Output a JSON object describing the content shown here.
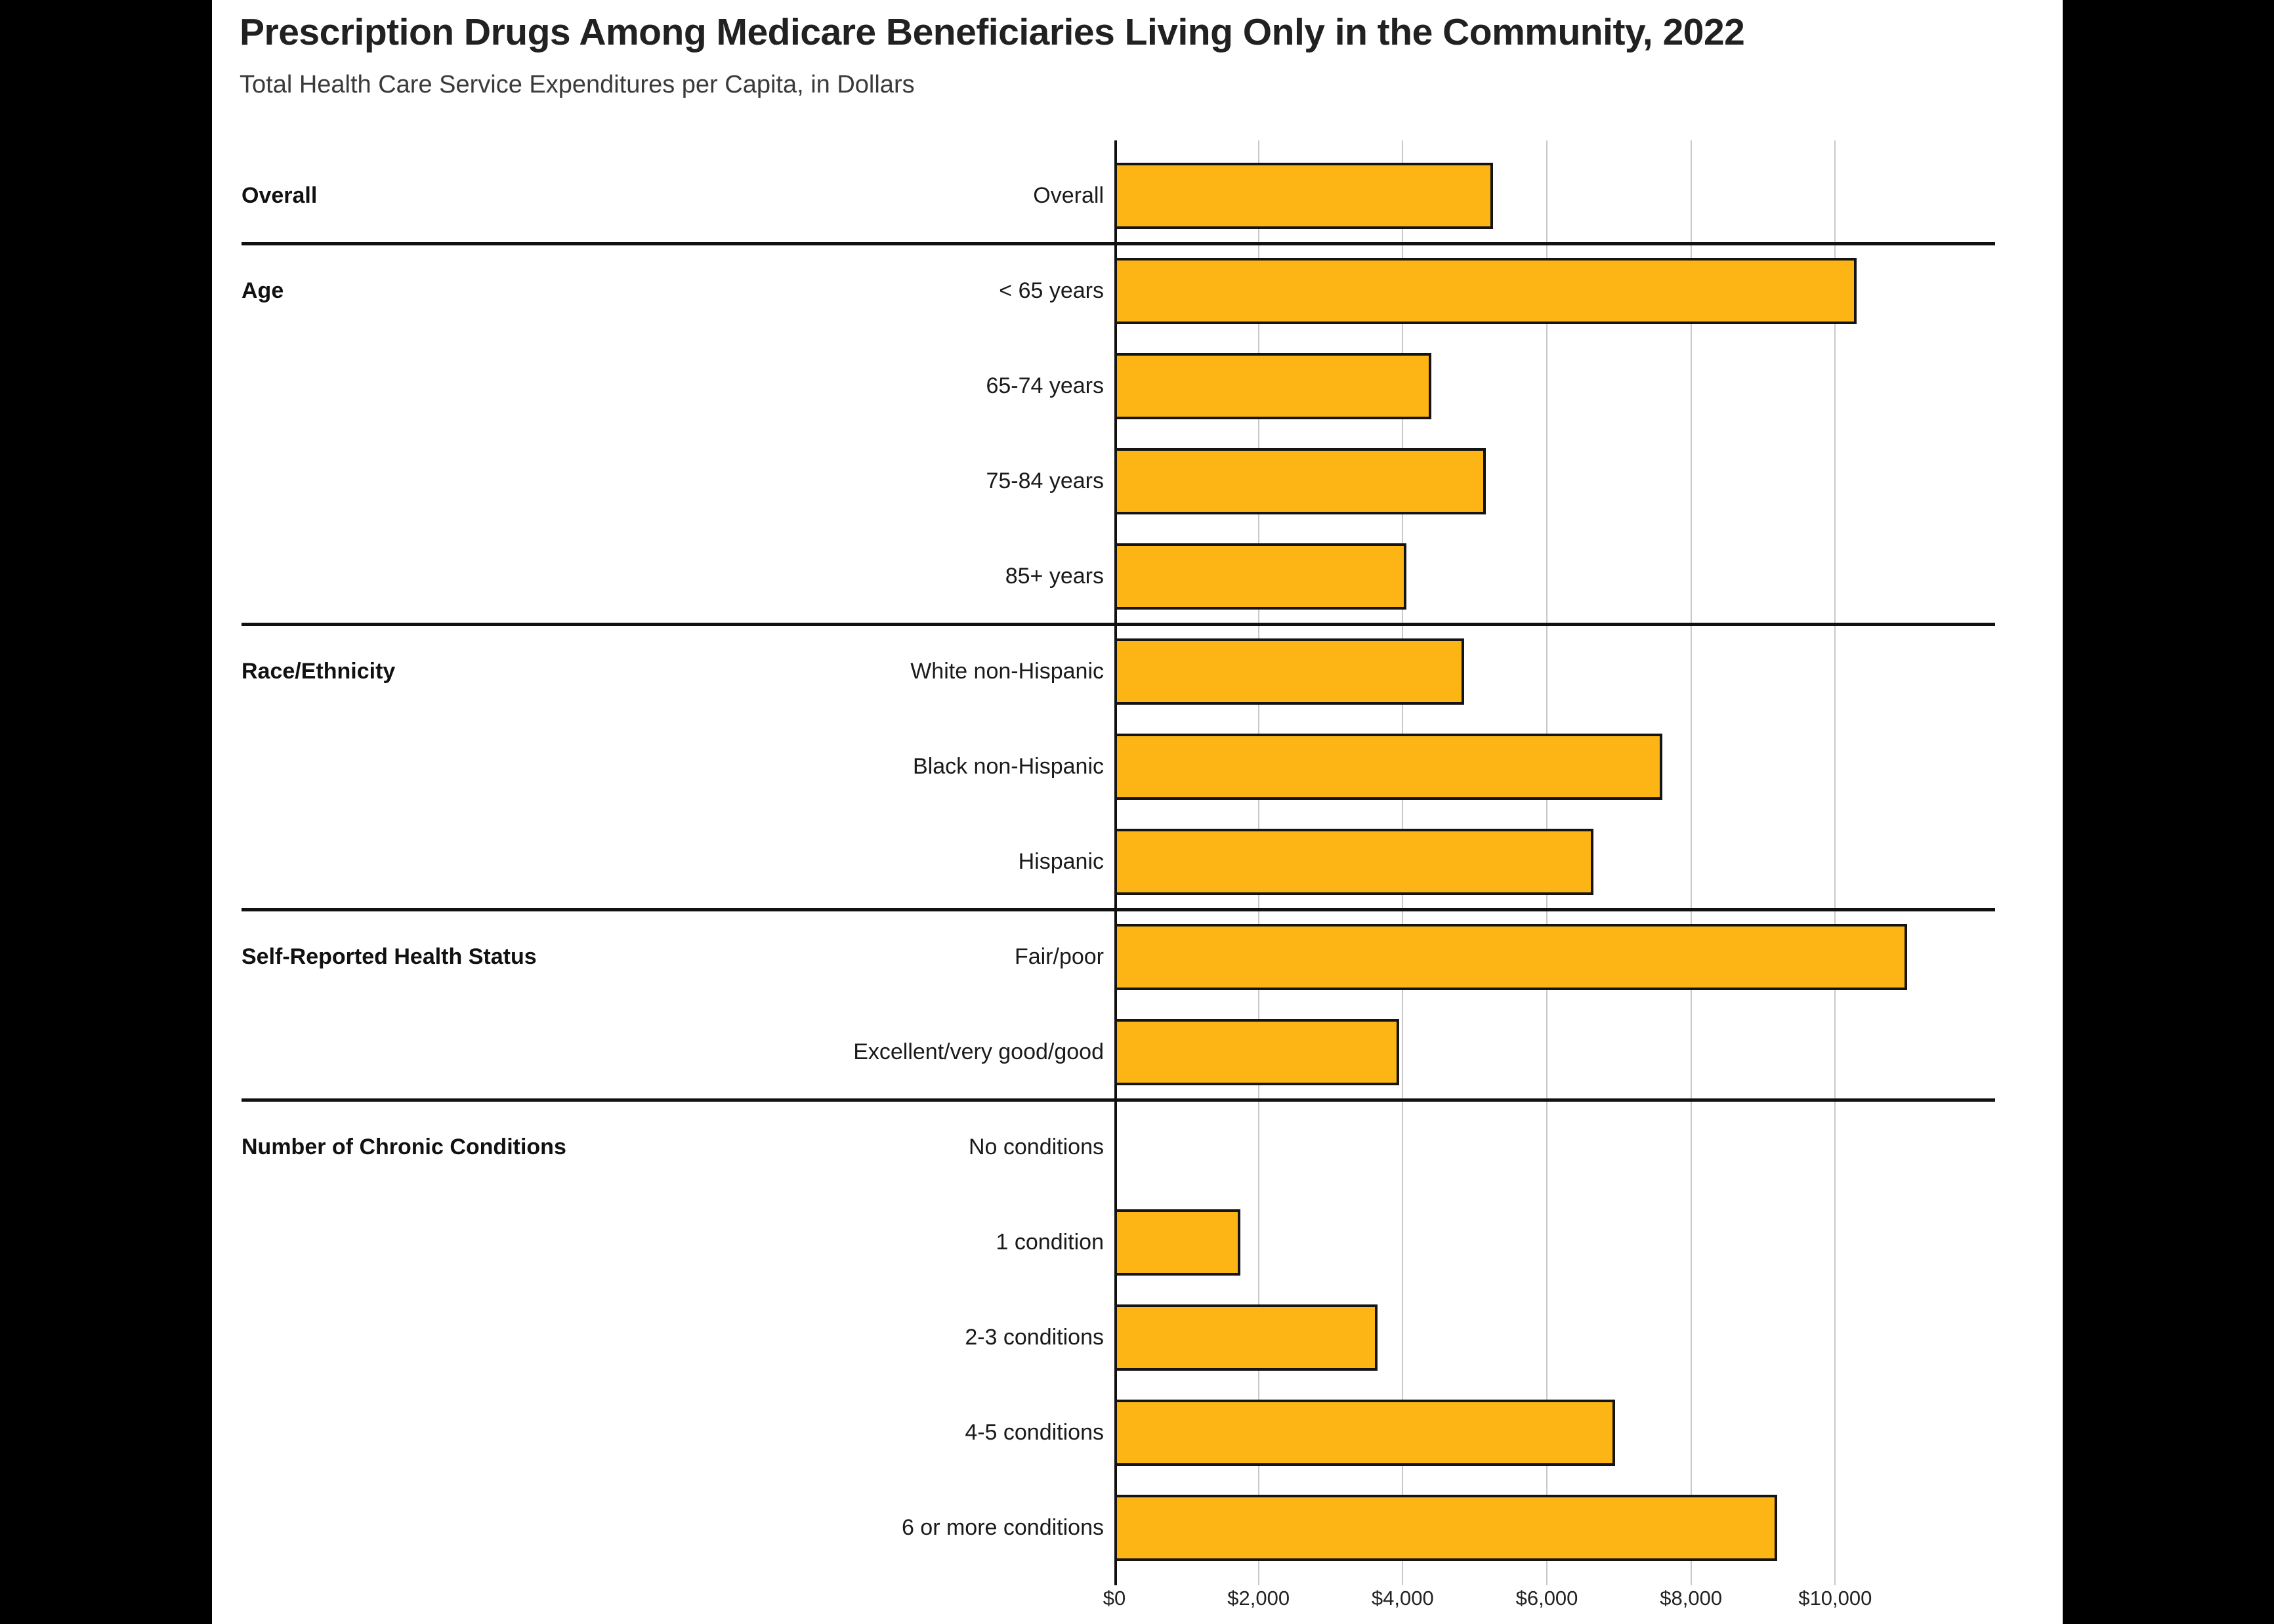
{
  "title": "Prescription Drugs Among Medicare Beneficiaries Living Only in the Community, 2022",
  "subtitle": "Total Health Care Service Expenditures per Capita, in Dollars",
  "colors": {
    "bar_fill": "#FCB514",
    "bar_border": "#141414",
    "gridline": "#C9C9C9",
    "axis": "#111111",
    "divider": "#111111",
    "background": "#FFFFFF",
    "frame": "#000000"
  },
  "chart_data": {
    "type": "bar",
    "orientation": "horizontal",
    "title": "Prescription Drugs Among Medicare Beneficiaries Living Only in the Community, 2022",
    "subtitle": "Total Health Care Service Expenditures per Capita, in Dollars",
    "xlabel": "",
    "ylabel": "",
    "unit": "dollars",
    "xlim": [
      0,
      12200
    ],
    "grid": "vertical gridlines every $2,000",
    "legend": "none",
    "x_tick_values": [
      0,
      2000,
      4000,
      6000,
      8000,
      10000
    ],
    "x_ticks": [
      "$0",
      "$2,000",
      "$4,000",
      "$6,000",
      "$8,000",
      "$10,000"
    ],
    "sections": [
      {
        "label": "Overall",
        "rows": [
          {
            "label": "Overall",
            "value": 5250
          }
        ]
      },
      {
        "label": "Age",
        "rows": [
          {
            "label": "< 65 years",
            "value": 10300
          },
          {
            "label": "65-74 years",
            "value": 4400
          },
          {
            "label": "75-84 years",
            "value": 5150
          },
          {
            "label": "85+ years",
            "value": 4050
          }
        ]
      },
      {
        "label": "Race/Ethnicity",
        "rows": [
          {
            "label": "White non-Hispanic",
            "value": 4850
          },
          {
            "label": "Black non-Hispanic",
            "value": 7600
          },
          {
            "label": "Hispanic",
            "value": 6650
          }
        ]
      },
      {
        "label": "Self-Reported Health Status",
        "rows": [
          {
            "label": "Fair/poor",
            "value": 11000
          },
          {
            "label": "Excellent/very good/good",
            "value": 3950
          }
        ]
      },
      {
        "label": "Number of Chronic Conditions",
        "rows": [
          {
            "label": "No conditions",
            "value": 0
          },
          {
            "label": "1 condition",
            "value": 1750
          },
          {
            "label": "2-3 conditions",
            "value": 3650
          },
          {
            "label": "4-5 conditions",
            "value": 6950
          },
          {
            "label": "6 or more conditions",
            "value": 9200
          }
        ]
      }
    ]
  }
}
